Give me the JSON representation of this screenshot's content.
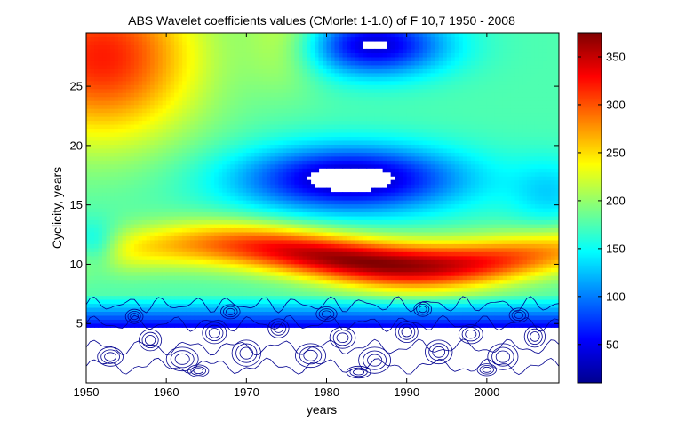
{
  "chart_data": {
    "type": "heatmap",
    "title": "ABS Wavelet coefficients values (CMorlet 1-1.0)  of  F 10,7  1950 - 2008",
    "xlabel": "years",
    "ylabel": "Cyclicity, years",
    "xlim": [
      1950,
      2009
    ],
    "ylim": [
      0,
      29.5
    ],
    "x_ticks": [
      1950,
      1960,
      1970,
      1980,
      1990,
      2000
    ],
    "y_ticks": [
      5,
      10,
      15,
      20,
      25
    ],
    "colorbar": {
      "colormap": "jet",
      "range": [
        10,
        375
      ],
      "ticks": [
        50,
        100,
        150,
        200,
        250,
        300,
        350
      ]
    },
    "features": [
      {
        "name": "11-year cycle band",
        "x_range": [
          1960,
          2005
        ],
        "y_center": 10.8,
        "peak_value": 375,
        "peak_x": 1990
      },
      {
        "name": "upper-left high region",
        "x_range": [
          1950,
          1965
        ],
        "y_range": [
          20,
          29.5
        ],
        "value": 300
      },
      {
        "name": "low band near 17 years",
        "x_center": 1983,
        "y_center": 17.2,
        "value": 35
      },
      {
        "name": "low region near 28 years",
        "x_center": 1986,
        "y_center": 28,
        "value": 40
      },
      {
        "name": "short-period contours",
        "y_range": [
          0,
          6
        ],
        "value": "<50"
      }
    ]
  }
}
